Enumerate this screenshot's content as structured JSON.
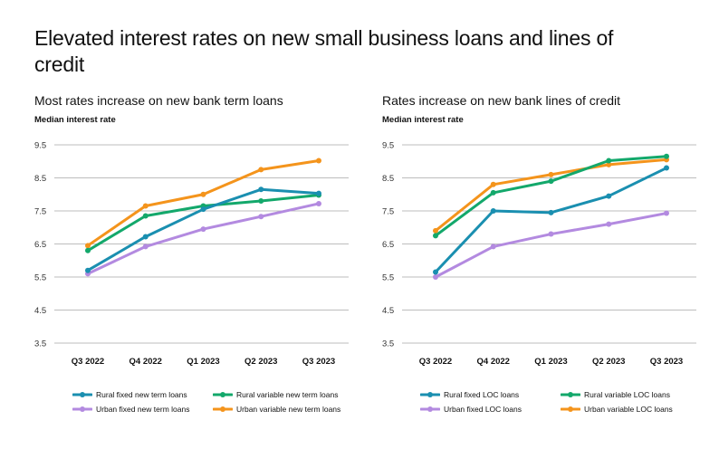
{
  "title": "Elevated interest rates on new small business loans and lines of credit",
  "colors": {
    "rural_fixed": "#1a8fb0",
    "rural_variable": "#13a86b",
    "urban_fixed": "#b38ae0",
    "urban_variable": "#f4941c",
    "grid": "#bdbdbd"
  },
  "chart_data": [
    {
      "type": "line",
      "title": "Most rates increase on new bank term loans",
      "ylabel": "Median interest rate",
      "xlabel": "",
      "categories": [
        "Q3 2022",
        "Q4 2022",
        "Q1 2023",
        "Q2 2023",
        "Q3 2023"
      ],
      "ylim": [
        3.5,
        9.5
      ],
      "yticks": [
        "9.5",
        "8.5",
        "7.5",
        "6.5",
        "5.5",
        "4.5",
        "3.5"
      ],
      "grid": true,
      "legend": "bottom",
      "series": [
        {
          "name": "Rural fixed new term loans",
          "color": "rural_fixed",
          "values": [
            5.7,
            6.72,
            7.55,
            8.15,
            8.03
          ]
        },
        {
          "name": "Rural variable new term loans",
          "color": "rural_variable",
          "values": [
            6.3,
            7.35,
            7.65,
            7.8,
            7.98
          ]
        },
        {
          "name": "Urban fixed new term loans",
          "color": "urban_fixed",
          "values": [
            5.6,
            6.42,
            6.95,
            7.33,
            7.72
          ]
        },
        {
          "name": "Urban variable new term loans",
          "color": "urban_variable",
          "values": [
            6.45,
            7.65,
            8.0,
            8.75,
            9.02
          ]
        }
      ]
    },
    {
      "type": "line",
      "title": "Rates increase on new bank lines of credit",
      "ylabel": "Median interest rate",
      "xlabel": "",
      "categories": [
        "Q3 2022",
        "Q4 2022",
        "Q1 2023",
        "Q2 2023",
        "Q3 2023"
      ],
      "ylim": [
        3.5,
        9.5
      ],
      "yticks": [
        "9.5",
        "8.5",
        "7.5",
        "6.5",
        "5.5",
        "4.5",
        "3.5"
      ],
      "grid": true,
      "legend": "bottom",
      "series": [
        {
          "name": "Rural fixed LOC loans",
          "color": "rural_fixed",
          "values": [
            5.65,
            7.5,
            7.45,
            7.95,
            8.8
          ]
        },
        {
          "name": "Rural variable LOC loans",
          "color": "rural_variable",
          "values": [
            6.75,
            8.05,
            8.4,
            9.02,
            9.15
          ]
        },
        {
          "name": "Urban fixed LOC loans",
          "color": "urban_fixed",
          "values": [
            5.5,
            6.42,
            6.8,
            7.1,
            7.43
          ]
        },
        {
          "name": "Urban variable LOC loans",
          "color": "urban_variable",
          "values": [
            6.9,
            8.3,
            8.6,
            8.9,
            9.05
          ]
        }
      ]
    }
  ]
}
